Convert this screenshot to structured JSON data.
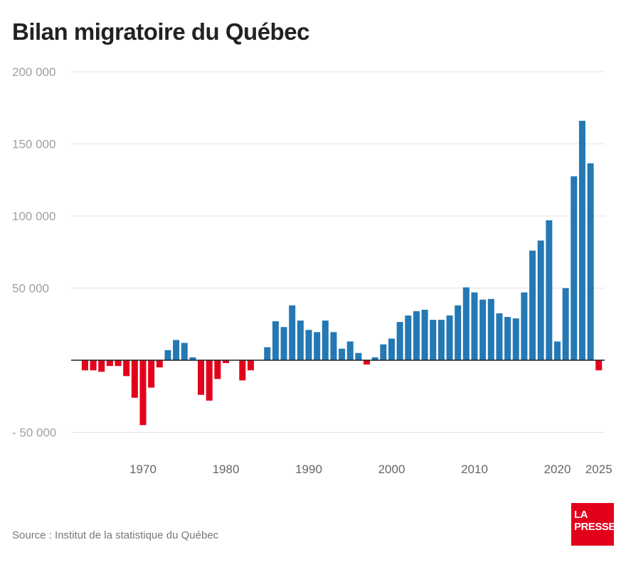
{
  "chart_data": {
    "type": "bar",
    "title": "Bilan migratoire du Québec",
    "xlabel": "",
    "ylabel": "",
    "ylim": [
      -50000,
      200000
    ],
    "yticks": [
      200000,
      150000,
      100000,
      50000,
      -50000
    ],
    "ytick_labels": [
      "200 000",
      "150 000",
      "100 000",
      "50 000",
      "- 50 000"
    ],
    "xticks": [
      1970,
      1980,
      1990,
      2000,
      2010,
      2020,
      2025
    ],
    "xtick_labels": [
      "1970",
      "1980",
      "1990",
      "2000",
      "2010",
      "2020",
      "2025"
    ],
    "grid": true,
    "colors": {
      "positive": "#2478b4",
      "negative": "#e3001b"
    },
    "x": [
      1963,
      1964,
      1965,
      1966,
      1967,
      1968,
      1969,
      1970,
      1971,
      1972,
      1973,
      1974,
      1975,
      1976,
      1977,
      1978,
      1979,
      1980,
      1981,
      1982,
      1983,
      1984,
      1985,
      1986,
      1987,
      1988,
      1989,
      1990,
      1991,
      1992,
      1993,
      1994,
      1995,
      1996,
      1997,
      1998,
      1999,
      2000,
      2001,
      2002,
      2003,
      2004,
      2005,
      2006,
      2007,
      2008,
      2009,
      2010,
      2011,
      2012,
      2013,
      2014,
      2015,
      2016,
      2017,
      2018,
      2019,
      2020,
      2021,
      2022,
      2023,
      2024,
      2025
    ],
    "values": [
      -7000,
      -7000,
      -8000,
      -4000,
      -4000,
      -11000,
      -26000,
      -45000,
      -19000,
      -5000,
      7000,
      14000,
      12000,
      2000,
      -24000,
      -28000,
      -13000,
      -2000,
      0,
      -14000,
      -7000,
      0,
      9000,
      27000,
      23000,
      38000,
      27500,
      21000,
      19500,
      27500,
      19500,
      8000,
      13000,
      5000,
      -3000,
      2000,
      11000,
      15000,
      26500,
      31000,
      34000,
      35000,
      28000,
      28000,
      31000,
      38000,
      50500,
      47000,
      42000,
      42500,
      32500,
      30000,
      29000,
      47000,
      76000,
      83000,
      97000,
      13000,
      50000,
      127500,
      166000,
      136500,
      -7000
    ]
  },
  "source": "Source : Institut de la statistique du Québec",
  "logo": "LA PRESSE"
}
